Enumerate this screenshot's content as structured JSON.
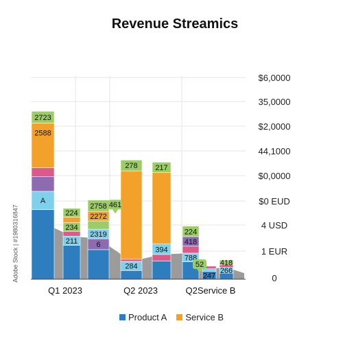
{
  "chart_data": {
    "type": "bar",
    "title": "Revenue Streamics",
    "categories": [
      "Q1 2023",
      "Q2 2023",
      "Q2Service B"
    ],
    "y_tick_labels": [
      "$6,0000",
      "35,0000",
      "$2,0000",
      "44,1000",
      "$0,0000",
      "$0 EUD",
      "4 USD",
      "1 EUR",
      "0"
    ],
    "legend": [
      {
        "name": "Product A",
        "color": "#2e7dbf"
      },
      {
        "name": "Service B",
        "color": "#f2a12a"
      }
    ],
    "grid": true,
    "colors": {
      "blue": "#2e7dbf",
      "cyan": "#7fd0ea",
      "purple": "#8c6bb1",
      "pink": "#dc5a8a",
      "orange": "#f2a12a",
      "green": "#9ccc65",
      "gray": "#8a8a8a"
    },
    "bars": [
      {
        "category": "Q1 2023",
        "segments": [
          {
            "color": "blue",
            "value": 1600
          },
          {
            "color": "cyan",
            "value": 420,
            "label": "A"
          },
          {
            "color": "purple",
            "value": 340
          },
          {
            "color": "pink",
            "value": 200
          },
          {
            "color": "orange",
            "value": 1030,
            "label": "2588"
          },
          {
            "color": "green",
            "value": 270,
            "label": "2723"
          }
        ]
      },
      {
        "category": "Q1 2023",
        "segments": [
          {
            "color": "blue",
            "value": 780
          },
          {
            "color": "cyan",
            "value": 210,
            "label": "211"
          },
          {
            "color": "pink",
            "value": 110
          },
          {
            "color": "green",
            "value": 200,
            "label": "234"
          },
          {
            "color": "orange",
            "value": 130
          },
          {
            "color": "green",
            "value": 200,
            "label": "224"
          }
        ]
      },
      {
        "category": "Q1 2023",
        "segments": [
          {
            "color": "blue",
            "value": 680
          },
          {
            "color": "purple",
            "value": 250,
            "label": "6"
          },
          {
            "color": "cyan",
            "value": 220,
            "label": "2319"
          },
          {
            "color": "green",
            "value": 190
          },
          {
            "color": "orange",
            "value": 220,
            "label": "2272"
          },
          {
            "color": "green",
            "value": 260,
            "label": "2758"
          }
        ]
      },
      {
        "category": "Q2 2023",
        "segments": [
          {
            "color": "blue",
            "value": 200
          },
          {
            "color": "cyan",
            "value": 210,
            "label": "284"
          },
          {
            "color": "pink",
            "value": 50
          },
          {
            "color": "orange",
            "value": 2030
          },
          {
            "color": "green",
            "value": 250,
            "label": "278"
          }
        ]
      },
      {
        "category": "Q2 2023",
        "segments": [
          {
            "color": "blue",
            "value": 420
          },
          {
            "color": "pink",
            "value": 150
          },
          {
            "color": "cyan",
            "value": 240,
            "label": "394"
          },
          {
            "color": "orange",
            "value": 1640
          },
          {
            "color": "green",
            "value": 240,
            "label": "217"
          }
        ]
      },
      {
        "category": "Q2Service B",
        "segments": [
          {
            "color": "blue",
            "value": 400
          },
          {
            "color": "cyan",
            "value": 200,
            "label": "788"
          },
          {
            "color": "pink",
            "value": 160
          },
          {
            "color": "purple",
            "value": 220,
            "label": "418"
          },
          {
            "color": "green",
            "value": 240,
            "label": "224"
          }
        ]
      },
      {
        "category": "Q2Service B",
        "segments": [
          {
            "color": "blue",
            "value": 180,
            "label": "247"
          },
          {
            "color": "cyan",
            "value": 60
          },
          {
            "color": "pink",
            "value": 60
          }
        ]
      },
      {
        "category": "Q2Service B",
        "segments": [
          {
            "color": "blue",
            "value": 140
          },
          {
            "color": "cyan",
            "value": 130,
            "label": "266"
          },
          {
            "color": "pink",
            "value": 60
          },
          {
            "color": "green",
            "value": 110,
            "label": "418"
          }
        ]
      }
    ],
    "callouts": [
      {
        "label": "461",
        "bar_gap": 3
      },
      {
        "label": "52",
        "bar_gap": 6
      }
    ]
  },
  "side_label": "Adobe Stock | #1980316847"
}
